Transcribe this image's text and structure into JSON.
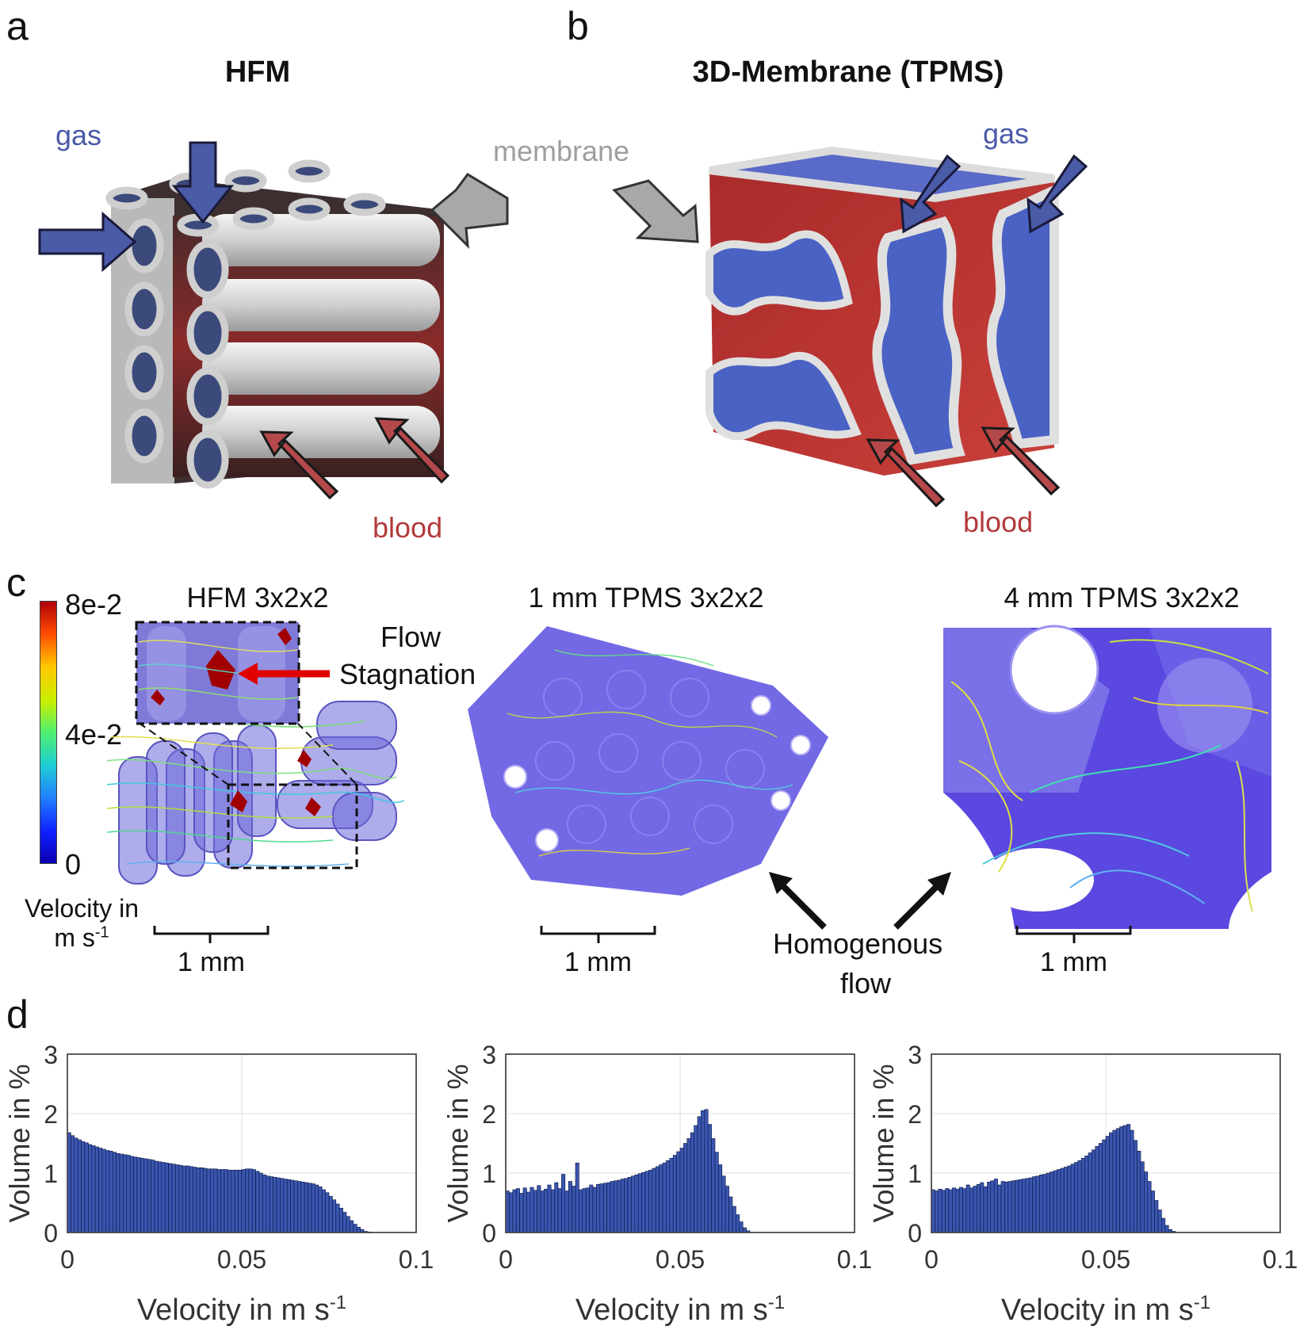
{
  "panels": {
    "a": {
      "letter": "a",
      "title": "HFM",
      "label_gas": "gas",
      "label_blood": "blood"
    },
    "b": {
      "letter": "b",
      "title": "3D-Membrane (TPMS)",
      "label_gas": "gas",
      "label_membrane": "membrane",
      "label_blood": "blood"
    },
    "c": {
      "letter": "c",
      "sub1_title": "HFM 3x2x2",
      "sub2_title": "1 mm TPMS 3x2x2",
      "sub3_title": "4 mm TPMS 3x2x2",
      "colorbar": {
        "max": "8e-2",
        "mid": "4e-2",
        "min": "0"
      },
      "colorbar_label_line1": "Velocity in",
      "colorbar_label_line2": "m s",
      "colorbar_label_sup": "-1",
      "annotation_line1": "Flow",
      "annotation_line2": "Stagnation",
      "homogenous_line1": "Homogenous",
      "homogenous_line2": "flow",
      "scale_bar": "1 mm"
    },
    "d": {
      "letter": "d"
    }
  },
  "chart_data": [
    {
      "type": "bar",
      "title": "",
      "xlabel": "Velocity in m s",
      "xlabel_sup": "-1",
      "ylabel": "Volume in %",
      "xlim": [
        0,
        0.1
      ],
      "ylim": [
        0,
        3
      ],
      "xticks": [
        "0",
        "0.05",
        "0.1"
      ],
      "yticks": [
        "0",
        "1",
        "2",
        "3"
      ],
      "grid": true,
      "bar_color": "#3a56b0",
      "bin_width": 0.001,
      "x_start": 0,
      "values": [
        1.68,
        1.63,
        1.59,
        1.56,
        1.53,
        1.51,
        1.48,
        1.46,
        1.44,
        1.42,
        1.4,
        1.38,
        1.37,
        1.35,
        1.33,
        1.32,
        1.31,
        1.3,
        1.28,
        1.27,
        1.26,
        1.25,
        1.24,
        1.23,
        1.22,
        1.2,
        1.19,
        1.18,
        1.17,
        1.16,
        1.15,
        1.14,
        1.13,
        1.12,
        1.12,
        1.11,
        1.1,
        1.09,
        1.09,
        1.08,
        1.07,
        1.07,
        1.07,
        1.06,
        1.06,
        1.06,
        1.05,
        1.05,
        1.05,
        1.05,
        1.06,
        1.07,
        1.07,
        1.06,
        1.03,
        1.0,
        0.97,
        0.95,
        0.94,
        0.93,
        0.92,
        0.91,
        0.9,
        0.89,
        0.88,
        0.87,
        0.86,
        0.85,
        0.84,
        0.83,
        0.82,
        0.8,
        0.77,
        0.72,
        0.67,
        0.61,
        0.55,
        0.48,
        0.41,
        0.34,
        0.27,
        0.2,
        0.14,
        0.09,
        0.05,
        0.02,
        0.01
      ]
    },
    {
      "type": "bar",
      "title": "",
      "xlabel": "Velocity in m s",
      "xlabel_sup": "-1",
      "ylabel": "Volume in %",
      "xlim": [
        0,
        0.1
      ],
      "ylim": [
        0,
        3
      ],
      "xticks": [
        "0",
        "0.05",
        "0.1"
      ],
      "yticks": [
        "0",
        "1",
        "2",
        "3"
      ],
      "grid": true,
      "bar_color": "#3a56b0",
      "bin_width": 0.001,
      "x_start": 0,
      "values": [
        0.7,
        0.67,
        0.72,
        0.74,
        0.66,
        0.75,
        0.68,
        0.76,
        0.71,
        0.79,
        0.7,
        0.73,
        0.8,
        0.72,
        0.84,
        0.74,
        0.98,
        0.7,
        0.86,
        0.78,
        1.17,
        0.72,
        0.74,
        0.75,
        0.8,
        0.76,
        0.81,
        0.82,
        0.83,
        0.84,
        0.86,
        0.87,
        0.88,
        0.9,
        0.91,
        0.93,
        0.95,
        0.97,
        0.99,
        1.01,
        1.03,
        1.05,
        1.08,
        1.11,
        1.14,
        1.17,
        1.21,
        1.25,
        1.3,
        1.36,
        1.42,
        1.5,
        1.58,
        1.68,
        1.8,
        1.95,
        2.05,
        2.07,
        1.82,
        1.58,
        1.35,
        1.14,
        0.95,
        0.78,
        0.6,
        0.44,
        0.3,
        0.18,
        0.08,
        0.03
      ]
    },
    {
      "type": "bar",
      "title": "",
      "xlabel": "Velocity in m s",
      "xlabel_sup": "-1",
      "ylabel": "Volume in %",
      "xlim": [
        0,
        0.1
      ],
      "ylim": [
        0,
        3
      ],
      "xticks": [
        "0",
        "0.05",
        "0.1"
      ],
      "yticks": [
        "0",
        "1",
        "2",
        "3"
      ],
      "grid": true,
      "bar_color": "#3a56b0",
      "bin_width": 0.001,
      "x_start": 0,
      "values": [
        0.72,
        0.7,
        0.73,
        0.71,
        0.74,
        0.72,
        0.75,
        0.73,
        0.76,
        0.74,
        0.8,
        0.75,
        0.78,
        0.81,
        0.84,
        0.77,
        0.85,
        0.87,
        0.9,
        0.8,
        0.86,
        0.85,
        0.86,
        0.87,
        0.88,
        0.89,
        0.9,
        0.91,
        0.92,
        0.94,
        0.95,
        0.97,
        0.98,
        1.0,
        1.02,
        1.04,
        1.06,
        1.08,
        1.1,
        1.12,
        1.15,
        1.18,
        1.21,
        1.25,
        1.29,
        1.34,
        1.39,
        1.45,
        1.5,
        1.56,
        1.62,
        1.68,
        1.72,
        1.75,
        1.78,
        1.8,
        1.82,
        1.72,
        1.55,
        1.37,
        1.19,
        1.02,
        0.86,
        0.7,
        0.54,
        0.38,
        0.24,
        0.12,
        0.05,
        0.02
      ]
    }
  ]
}
